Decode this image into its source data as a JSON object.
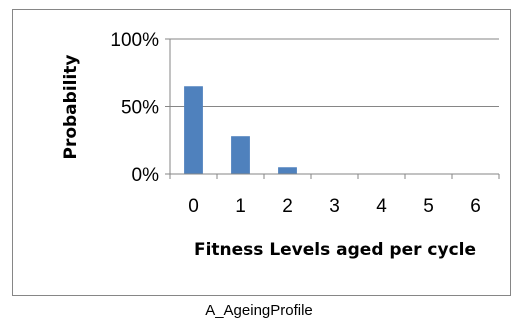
{
  "chart_data": {
    "type": "bar",
    "categories": [
      "0",
      "1",
      "2",
      "3",
      "4",
      "5",
      "6"
    ],
    "values": [
      65,
      28,
      5,
      0,
      0,
      0,
      0
    ],
    "ylim": [
      0,
      100
    ],
    "y_ticks": [
      0,
      50,
      100
    ],
    "y_tick_labels": [
      "0%",
      "50%",
      "100%"
    ],
    "xlabel": "Fitness Levels aged per cycle",
    "ylabel": "Probability",
    "grid": true,
    "legend": "none",
    "bar_color": "#4f81bd",
    "grid_color": "#868686"
  },
  "caption": "A_AgeingProfile"
}
